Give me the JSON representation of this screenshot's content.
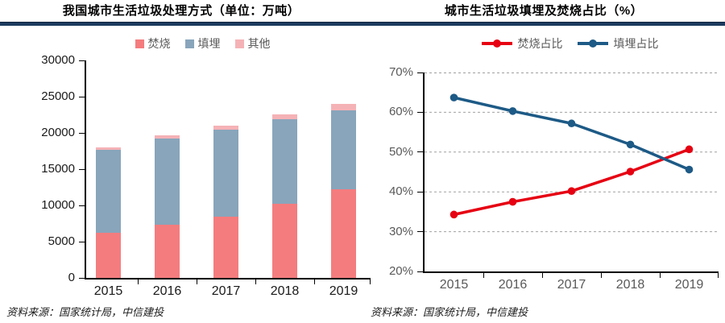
{
  "colors": {
    "title_text": "#000000",
    "title_rule": "#1C3B5E",
    "axis_line": "#000000",
    "left_axis_text": "#1a1a1a",
    "right_axis_text": "#595959",
    "legend_text": "#595959",
    "gridline": "#a0a0a0",
    "source_text": "#1a1a1a"
  },
  "chart_data": [
    {
      "type": "bar",
      "stacked": true,
      "title": "我国城市生活垃圾处理方式（单位：万吨）",
      "categories": [
        "2015",
        "2016",
        "2017",
        "2018",
        "2019"
      ],
      "series": [
        {
          "name": "焚烧",
          "color": "#F47C7E",
          "values": [
            6176,
            7378,
            8463,
            10185,
            12174
          ]
        },
        {
          "name": "填埋",
          "color": "#88A5BB",
          "values": [
            11483,
            11866,
            12038,
            11706,
            10948
          ]
        },
        {
          "name": "其他",
          "color": "#F5B2B6",
          "values": [
            354,
            430,
            533,
            674,
            891
          ]
        }
      ],
      "ylim": [
        0,
        30000
      ],
      "yticks": [
        0,
        5000,
        10000,
        15000,
        20000,
        25000,
        30000
      ],
      "y_suffix": "",
      "grid": false,
      "legend_position": "top",
      "source": "资料来源：国家统计局，中信建投"
    },
    {
      "type": "line",
      "title": "城市生活垃圾填埋及焚烧占比（%）",
      "categories": [
        "2015",
        "2016",
        "2017",
        "2018",
        "2019"
      ],
      "series": [
        {
          "name": "焚烧占比",
          "color": "#E60012",
          "values": [
            34.3,
            37.5,
            40.2,
            45.1,
            50.7
          ]
        },
        {
          "name": "填埋占比",
          "color": "#1D5A86",
          "values": [
            63.7,
            60.3,
            57.2,
            51.9,
            45.6
          ]
        }
      ],
      "ylim": [
        20,
        70
      ],
      "yticks": [
        20,
        30,
        40,
        50,
        60,
        70
      ],
      "y_suffix": "%",
      "grid": true,
      "legend_position": "top",
      "source": "资料来源：国家统计局，中信建投"
    }
  ]
}
